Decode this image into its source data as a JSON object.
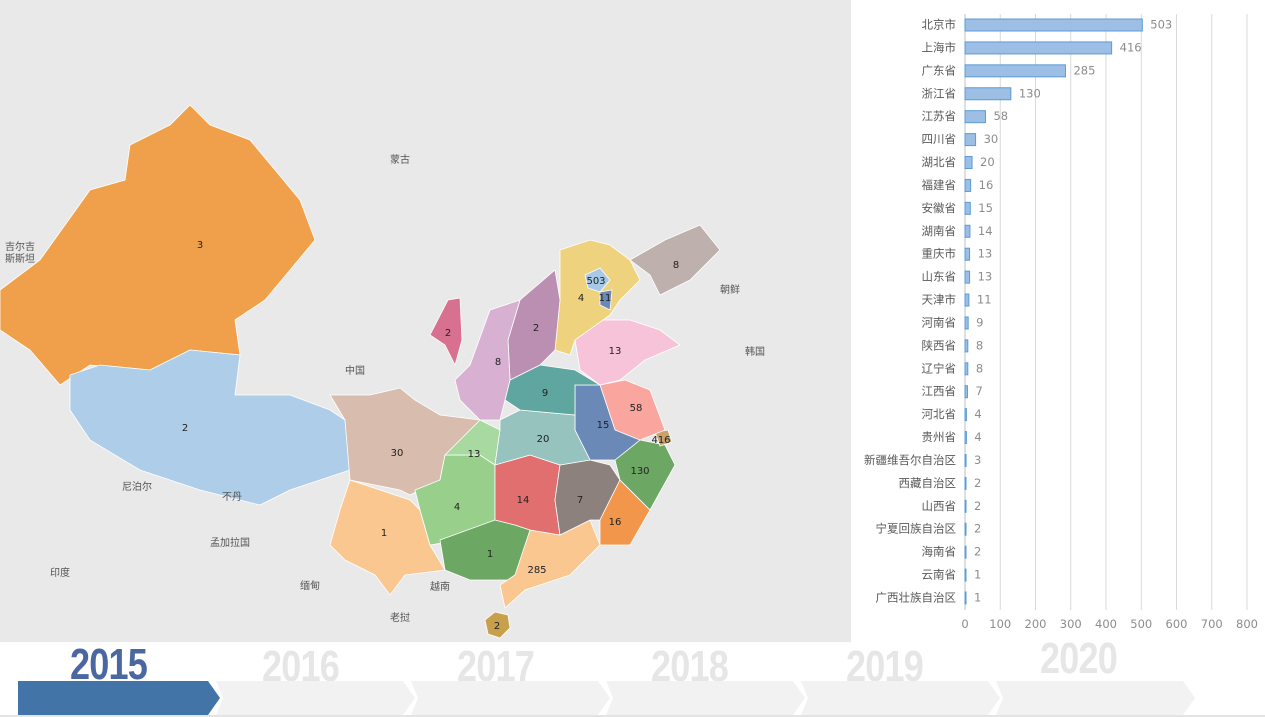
{
  "map": {
    "places": [
      "蒙古",
      "中国",
      "吉尔吉",
      "斯斯坦",
      "朝鲜",
      "韩国",
      "尼泊尔",
      "不丹",
      "孟加拉国",
      "印度",
      "缅甸",
      "越南",
      "老挝"
    ]
  },
  "chart_data": {
    "type": "bar",
    "orientation": "horizontal",
    "categories": [
      "北京市",
      "上海市",
      "广东省",
      "浙江省",
      "江苏省",
      "四川省",
      "湖北省",
      "福建省",
      "安徽省",
      "湖南省",
      "重庆市",
      "山东省",
      "天津市",
      "河南省",
      "陕西省",
      "辽宁省",
      "江西省",
      "河北省",
      "贵州省",
      "新疆维吾尔自治区",
      "西藏自治区",
      "山西省",
      "宁夏回族自治区",
      "海南省",
      "云南省",
      "广西壮族自治区"
    ],
    "values": [
      503,
      416,
      285,
      130,
      58,
      30,
      20,
      16,
      15,
      14,
      13,
      13,
      11,
      9,
      8,
      8,
      7,
      4,
      4,
      3,
      2,
      2,
      2,
      2,
      1,
      1
    ],
    "xlim": [
      0,
      800
    ],
    "xticks": [
      0,
      100,
      200,
      300,
      400,
      500,
      600,
      700,
      800
    ],
    "grid": true,
    "bar_color": "#9dbfe6",
    "bar_edge": "#5b9bd5"
  },
  "timeline": {
    "years": [
      "2015",
      "2016",
      "2017",
      "2018",
      "2019",
      "2020"
    ],
    "selected": "2015",
    "active_color": "#4374a8",
    "inactive_color": "#f2f2f2"
  }
}
